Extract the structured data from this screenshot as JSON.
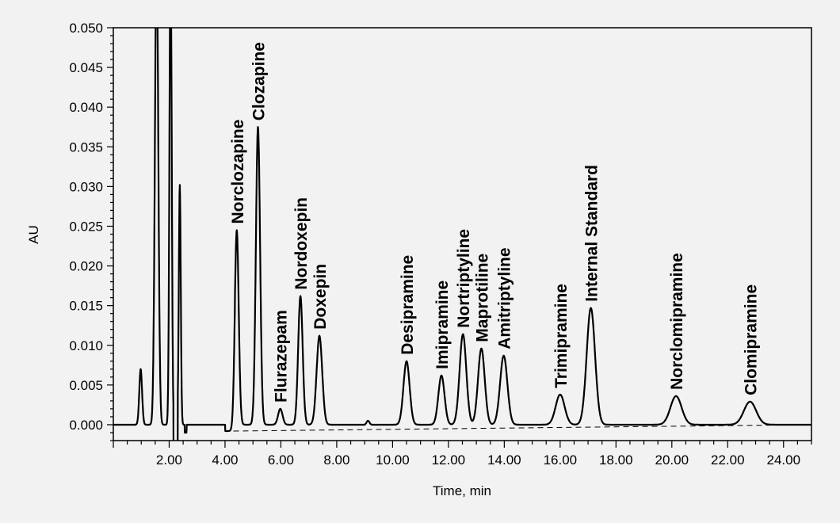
{
  "chart_data": {
    "type": "line",
    "title": "",
    "xlabel": "Time, min",
    "ylabel": "AU",
    "xlim": [
      0,
      25
    ],
    "ylim": [
      -0.002,
      0.05
    ],
    "x_ticks": [
      "2.00",
      "4.00",
      "6.00",
      "8.00",
      "10.00",
      "12.00",
      "14.00",
      "16.00",
      "18.00",
      "20.00",
      "22.00",
      "24.00"
    ],
    "x_tick_values": [
      2,
      4,
      6,
      8,
      10,
      12,
      14,
      16,
      18,
      20,
      22,
      24
    ],
    "y_ticks": [
      "0.000",
      "0.005",
      "0.010",
      "0.015",
      "0.020",
      "0.025",
      "0.030",
      "0.035",
      "0.040",
      "0.045",
      "0.050"
    ],
    "y_tick_values": [
      0,
      0.005,
      0.01,
      0.015,
      0.02,
      0.025,
      0.03,
      0.035,
      0.04,
      0.045,
      0.05
    ],
    "baseline": {
      "x": [
        4.3,
        25.0
      ],
      "y": [
        -0.0008,
        0.0
      ]
    },
    "solvent_peaks": [
      {
        "time": 0.98,
        "height": 0.007,
        "width": 0.05
      },
      {
        "time": 1.55,
        "height": 0.06,
        "width": 0.06
      },
      {
        "time": 2.05,
        "height": 0.06,
        "width": 0.04
      },
      {
        "time": 2.38,
        "height": 0.0302,
        "width": 0.035
      }
    ],
    "peaks": [
      {
        "name": "Norclozapine",
        "time": 4.42,
        "height": 0.0245,
        "width": 0.07
      },
      {
        "name": "Clozapine",
        "time": 5.18,
        "height": 0.0375,
        "width": 0.075
      },
      {
        "name": "Flurazepam",
        "time": 5.98,
        "height": 0.002,
        "width": 0.08
      },
      {
        "name": "Nordoxepin",
        "time": 6.7,
        "height": 0.0162,
        "width": 0.08
      },
      {
        "name": "Doxepin",
        "time": 7.38,
        "height": 0.0112,
        "width": 0.1
      },
      {
        "name": "Desipramine",
        "time": 10.5,
        "height": 0.008,
        "width": 0.11
      },
      {
        "name": "Imipramine",
        "time": 11.75,
        "height": 0.0062,
        "width": 0.11
      },
      {
        "name": "Nortriptyline",
        "time": 12.52,
        "height": 0.0114,
        "width": 0.12
      },
      {
        "name": "Maprotiline",
        "time": 13.18,
        "height": 0.0096,
        "width": 0.12
      },
      {
        "name": "Amitriptyline",
        "time": 13.98,
        "height": 0.0087,
        "width": 0.13
      },
      {
        "name": "Trimipramine",
        "time": 16.0,
        "height": 0.0038,
        "width": 0.16
      },
      {
        "name": "Internal Standard",
        "time": 17.1,
        "height": 0.0147,
        "width": 0.15
      },
      {
        "name": "Norclomipramine",
        "time": 20.15,
        "height": 0.0036,
        "width": 0.2
      },
      {
        "name": "Clomipramine",
        "time": 22.8,
        "height": 0.0029,
        "width": 0.22
      }
    ],
    "grid": false,
    "legend": "none"
  }
}
